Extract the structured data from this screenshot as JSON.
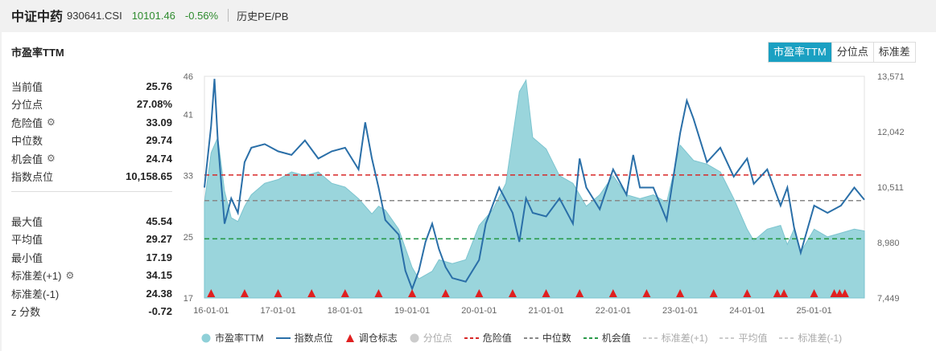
{
  "header": {
    "index_name": "中证中药",
    "code": "930641.CSI",
    "price": "10101.46",
    "change": "-0.56%",
    "history_label": "历史PE/PB"
  },
  "panel": {
    "title": "市盈率TTM",
    "tabs": [
      "市盈率TTM",
      "分位点",
      "标准差"
    ]
  },
  "stats_top": [
    {
      "label": "当前值",
      "value": "25.76",
      "gear": false
    },
    {
      "label": "分位点",
      "value": "27.08%",
      "gear": false
    },
    {
      "label": "危险值",
      "value": "33.09",
      "gear": true
    },
    {
      "label": "中位数",
      "value": "29.74",
      "gear": false
    },
    {
      "label": "机会值",
      "value": "24.74",
      "gear": true
    },
    {
      "label": "指数点位",
      "value": "10,158.65",
      "gear": false
    }
  ],
  "stats_bottom": [
    {
      "label": "最大值",
      "value": "45.54",
      "gear": false
    },
    {
      "label": "平均值",
      "value": "29.27",
      "gear": false
    },
    {
      "label": "最小值",
      "value": "17.19",
      "gear": false
    },
    {
      "label": "标准差(+1)",
      "value": "34.15",
      "gear": true
    },
    {
      "label": "标准差(-1)",
      "value": "24.38",
      "gear": false
    },
    {
      "label": "z 分数",
      "value": "-0.72",
      "gear": false
    }
  ],
  "legend": [
    {
      "label": "市盈率TTM",
      "kind": "dot",
      "color": "#8fd0d8",
      "dim": false
    },
    {
      "label": "指数点位",
      "kind": "line",
      "color": "#2a6fa8",
      "dim": false
    },
    {
      "label": "调仓标志",
      "kind": "triangle",
      "color": "#e02020",
      "dim": false
    },
    {
      "label": "分位点",
      "kind": "dot",
      "color": "#cccccc",
      "dim": true
    },
    {
      "label": "危险值",
      "kind": "dash",
      "color": "#d82828",
      "dim": false
    },
    {
      "label": "中位数",
      "kind": "dash",
      "color": "#888888",
      "dim": false
    },
    {
      "label": "机会值",
      "kind": "dash",
      "color": "#2a9a4a",
      "dim": false
    },
    {
      "label": "标准差(+1)",
      "kind": "dash",
      "color": "#cccccc",
      "dim": true
    },
    {
      "label": "平均值",
      "kind": "dash",
      "color": "#cccccc",
      "dim": true
    },
    {
      "label": "标准差(-1)",
      "kind": "dash",
      "color": "#cccccc",
      "dim": true
    }
  ],
  "chart_data": {
    "type": "area+line",
    "title": "市盈率TTM",
    "x_ticks": [
      "16-01-01",
      "17-01-01",
      "18-01-01",
      "19-01-01",
      "20-01-01",
      "21-01-01",
      "22-01-01",
      "23-01-01",
      "24-01-01",
      "25-01-01"
    ],
    "x_range": [
      2015.9,
      2025.75
    ],
    "left_axis": {
      "ticks": [
        17,
        25,
        33,
        41,
        46
      ],
      "range": [
        17,
        46
      ]
    },
    "right_axis": {
      "ticks": [
        "7,449",
        "8,980",
        "10,511",
        "12,042",
        "13,571"
      ],
      "range": [
        7449,
        13571
      ]
    },
    "ref_lines": {
      "danger": 33.09,
      "median": 29.74,
      "opportunity": 24.74
    },
    "pe_series": {
      "x": [
        2015.9,
        2016.0,
        2016.1,
        2016.2,
        2016.3,
        2016.4,
        2016.5,
        2016.6,
        2016.8,
        2017.0,
        2017.2,
        2017.4,
        2017.6,
        2017.8,
        2018.0,
        2018.2,
        2018.4,
        2018.5,
        2018.6,
        2018.8,
        2019.0,
        2019.1,
        2019.3,
        2019.4,
        2019.6,
        2019.8,
        2020.0,
        2020.2,
        2020.4,
        2020.5,
        2020.6,
        2020.7,
        2020.8,
        2021.0,
        2021.2,
        2021.4,
        2021.6,
        2021.8,
        2022.0,
        2022.2,
        2022.4,
        2022.6,
        2022.8,
        2023.0,
        2023.2,
        2023.4,
        2023.6,
        2023.8,
        2024.0,
        2024.1,
        2024.3,
        2024.5,
        2024.6,
        2024.7,
        2024.8,
        2025.0,
        2025.2,
        2025.4,
        2025.6,
        2025.75
      ],
      "y": [
        29.5,
        36.0,
        38.0,
        31.0,
        27.5,
        27.0,
        29.0,
        30.5,
        32.0,
        32.5,
        33.5,
        33.0,
        33.5,
        32.0,
        31.5,
        30.0,
        28.0,
        29.0,
        28.5,
        26.0,
        21.0,
        19.5,
        20.5,
        22.0,
        21.5,
        22.0,
        26.5,
        28.5,
        32.0,
        38.0,
        44.0,
        45.5,
        38.0,
        36.5,
        33.0,
        32.0,
        29.0,
        30.5,
        33.0,
        30.5,
        30.0,
        30.5,
        29.5,
        37.0,
        35.0,
        34.5,
        33.5,
        30.0,
        26.0,
        24.5,
        26.0,
        26.5,
        24.0,
        26.0,
        23.0,
        26.0,
        25.0,
        25.5,
        26.0,
        25.76
      ]
    },
    "index_series": {
      "x": [
        2015.9,
        2016.0,
        2016.05,
        2016.1,
        2016.2,
        2016.3,
        2016.4,
        2016.5,
        2016.6,
        2016.8,
        2017.0,
        2017.2,
        2017.4,
        2017.6,
        2017.8,
        2018.0,
        2018.2,
        2018.3,
        2018.4,
        2018.5,
        2018.6,
        2018.8,
        2018.9,
        2019.0,
        2019.1,
        2019.2,
        2019.3,
        2019.4,
        2019.5,
        2019.6,
        2019.8,
        2020.0,
        2020.1,
        2020.3,
        2020.5,
        2020.6,
        2020.7,
        2020.8,
        2021.0,
        2021.2,
        2021.4,
        2021.5,
        2021.6,
        2021.8,
        2022.0,
        2022.2,
        2022.3,
        2022.4,
        2022.6,
        2022.8,
        2023.0,
        2023.1,
        2023.2,
        2023.4,
        2023.6,
        2023.8,
        2024.0,
        2024.1,
        2024.3,
        2024.5,
        2024.6,
        2024.7,
        2024.8,
        2025.0,
        2025.2,
        2025.4,
        2025.6,
        2025.75
      ],
      "y": [
        10500,
        12200,
        13500,
        11800,
        9500,
        10200,
        9800,
        11200,
        11600,
        11700,
        11500,
        11400,
        11800,
        11300,
        11500,
        11600,
        11000,
        12300,
        11300,
        10500,
        9600,
        9200,
        8200,
        7700,
        8200,
        9000,
        9500,
        8800,
        8300,
        8000,
        7900,
        8500,
        9500,
        10500,
        9800,
        9000,
        10200,
        9800,
        9700,
        10200,
        9500,
        11300,
        10500,
        9900,
        11000,
        10300,
        11400,
        10500,
        10500,
        9600,
        12000,
        12900,
        12400,
        11200,
        11600,
        10800,
        11300,
        10600,
        11000,
        10000,
        10500,
        9400,
        8700,
        10000,
        9800,
        10000,
        10500,
        10158.65
      ]
    },
    "rebalance_marks_x": [
      2016.0,
      2016.5,
      2017.0,
      2017.5,
      2018.0,
      2018.5,
      2019.0,
      2019.5,
      2020.0,
      2020.5,
      2021.0,
      2021.5,
      2022.0,
      2022.5,
      2023.0,
      2023.5,
      2024.0,
      2024.45,
      2024.55,
      2025.0,
      2025.3,
      2025.38,
      2025.46
    ]
  }
}
